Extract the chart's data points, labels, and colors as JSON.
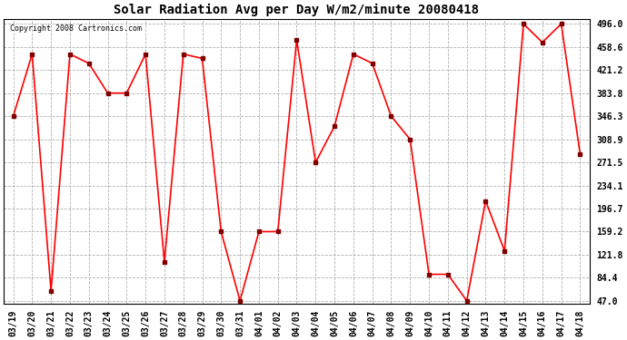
{
  "title": "Solar Radiation Avg per Day W/m2/minute 20080418",
  "copyright": "Copyright 2008 Cartronics.com",
  "dates": [
    "03/19",
    "03/20",
    "03/21",
    "03/22",
    "03/23",
    "03/24",
    "03/25",
    "03/26",
    "03/27",
    "03/28",
    "03/29",
    "03/30",
    "03/31",
    "04/01",
    "04/02",
    "04/03",
    "04/04",
    "04/05",
    "04/06",
    "04/07",
    "04/08",
    "04/09",
    "04/10",
    "04/11",
    "04/12",
    "04/13",
    "04/14",
    "04/15",
    "04/16",
    "04/17",
    "04/18"
  ],
  "values": [
    346.3,
    447.0,
    63.0,
    447.0,
    432.0,
    383.8,
    383.8,
    447.0,
    110.0,
    447.0,
    440.0,
    159.2,
    47.0,
    159.2,
    159.2,
    470.0,
    271.5,
    330.0,
    447.0,
    432.0,
    346.3,
    308.9,
    90.0,
    90.0,
    47.0,
    209.0,
    128.0,
    496.0,
    466.0,
    496.0,
    285.0
  ],
  "line_color": "#ff0000",
  "marker_color": "#800000",
  "background_color": "#ffffff",
  "grid_color": "#b0b0b0",
  "yticks": [
    47.0,
    84.4,
    121.8,
    159.2,
    196.7,
    234.1,
    271.5,
    308.9,
    346.3,
    383.8,
    421.2,
    458.6,
    496.0
  ],
  "ymin": 47.0,
  "ymax": 496.0,
  "title_fontsize": 10,
  "tick_fontsize": 7,
  "copyright_fontsize": 6
}
